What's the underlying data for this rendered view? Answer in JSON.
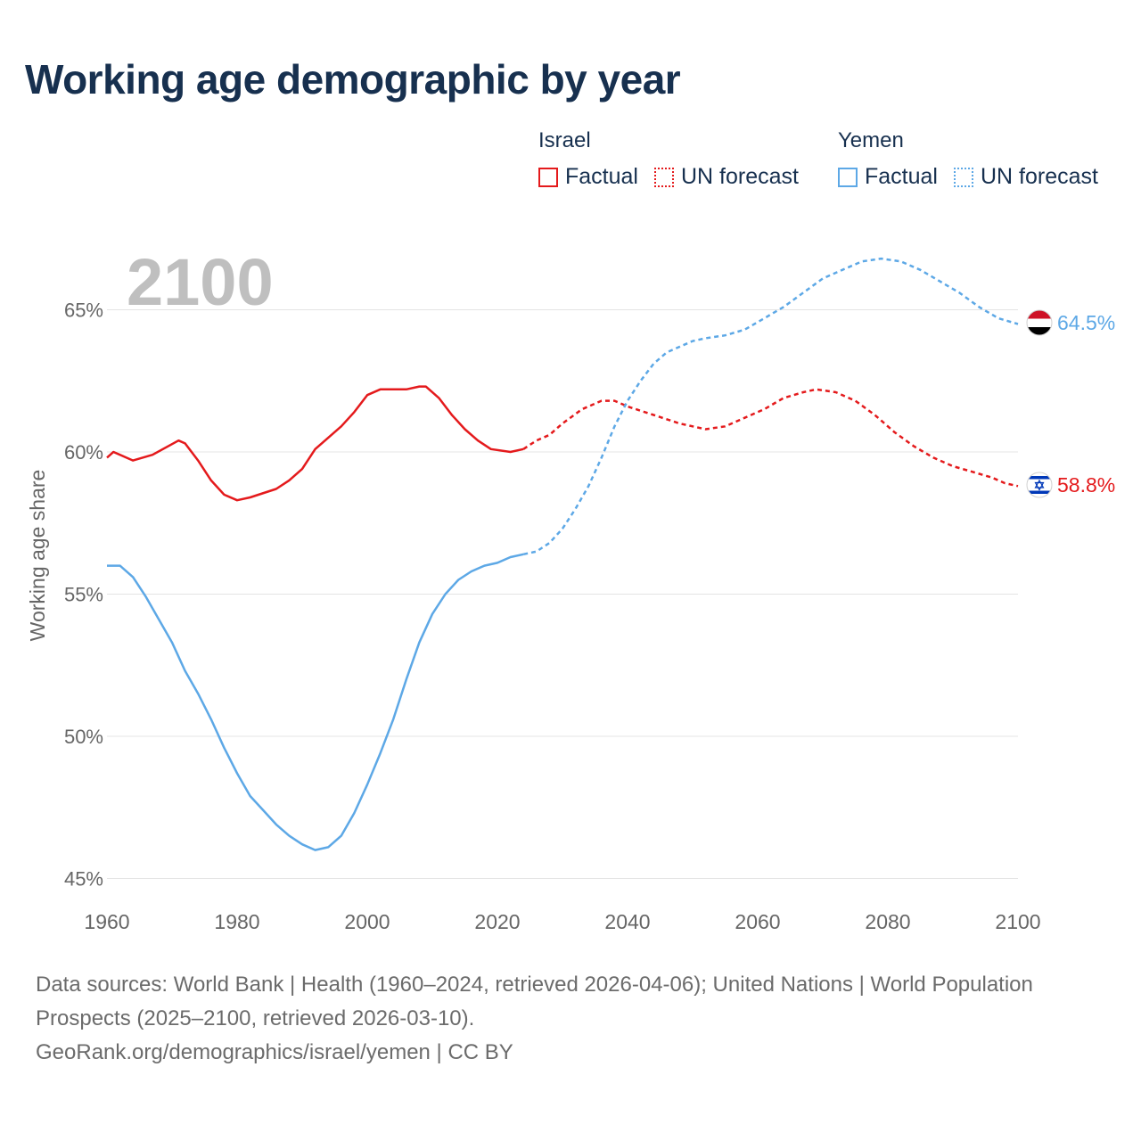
{
  "title": "Working age demographic by year",
  "legend": [
    {
      "country": "Israel",
      "factual_label": "Factual",
      "forecast_label": "UN forecast",
      "color": "#e41a1c"
    },
    {
      "country": "Yemen",
      "factual_label": "Factual",
      "forecast_label": "UN forecast",
      "color": "#5da8e6"
    }
  ],
  "colors": {
    "israel": "#e41a1c",
    "yemen": "#5da8e6",
    "axis_text": "#666666",
    "grid": "#e4e4e4",
    "watermark": "#bfbfbf"
  },
  "chart_data": {
    "type": "line",
    "title": "Working age demographic by year",
    "watermark_year": "2100",
    "xlabel": "",
    "ylabel": "Working age share",
    "xlim": [
      1960,
      2100
    ],
    "ylim": [
      45,
      70
    ],
    "x_ticks": [
      1960,
      1980,
      2000,
      2020,
      2040,
      2060,
      2080,
      2100
    ],
    "y_ticks": [
      45,
      50,
      55,
      60,
      65
    ],
    "y_tick_labels": [
      "45%",
      "50%",
      "55%",
      "60%",
      "65%"
    ],
    "forecast_start": 2024,
    "series": [
      {
        "name": "Israel",
        "end_label": "58.8%",
        "end_icon": "israel-flag-icon",
        "points": [
          [
            1960,
            59.8
          ],
          [
            1961,
            60.0
          ],
          [
            1964,
            59.7
          ],
          [
            1967,
            59.9
          ],
          [
            1971,
            60.4
          ],
          [
            1972,
            60.3
          ],
          [
            1974,
            59.7
          ],
          [
            1976,
            59.0
          ],
          [
            1978,
            58.5
          ],
          [
            1980,
            58.3
          ],
          [
            1982,
            58.4
          ],
          [
            1986,
            58.7
          ],
          [
            1988,
            59.0
          ],
          [
            1990,
            59.4
          ],
          [
            1992,
            60.1
          ],
          [
            1994,
            60.5
          ],
          [
            1996,
            60.9
          ],
          [
            1998,
            61.4
          ],
          [
            2000,
            62.0
          ],
          [
            2002,
            62.2
          ],
          [
            2004,
            62.2
          ],
          [
            2006,
            62.2
          ],
          [
            2008,
            62.3
          ],
          [
            2009,
            62.3
          ],
          [
            2011,
            61.9
          ],
          [
            2013,
            61.3
          ],
          [
            2015,
            60.8
          ],
          [
            2017,
            60.4
          ],
          [
            2019,
            60.1
          ],
          [
            2022,
            60.0
          ],
          [
            2024,
            60.1
          ],
          [
            2026,
            60.4
          ],
          [
            2028,
            60.6
          ],
          [
            2030,
            61.0
          ],
          [
            2033,
            61.5
          ],
          [
            2036,
            61.8
          ],
          [
            2038,
            61.8
          ],
          [
            2040,
            61.6
          ],
          [
            2044,
            61.3
          ],
          [
            2048,
            61.0
          ],
          [
            2052,
            60.8
          ],
          [
            2055,
            60.9
          ],
          [
            2058,
            61.2
          ],
          [
            2061,
            61.5
          ],
          [
            2064,
            61.9
          ],
          [
            2067,
            62.1
          ],
          [
            2069,
            62.2
          ],
          [
            2072,
            62.1
          ],
          [
            2075,
            61.8
          ],
          [
            2078,
            61.3
          ],
          [
            2081,
            60.7
          ],
          [
            2084,
            60.2
          ],
          [
            2087,
            59.8
          ],
          [
            2090,
            59.5
          ],
          [
            2093,
            59.3
          ],
          [
            2096,
            59.1
          ],
          [
            2098,
            58.9
          ],
          [
            2100,
            58.8
          ]
        ]
      },
      {
        "name": "Yemen",
        "end_label": "64.5%",
        "end_icon": "yemen-flag-icon",
        "points": [
          [
            1960,
            56.0
          ],
          [
            1962,
            56.0
          ],
          [
            1964,
            55.6
          ],
          [
            1966,
            54.9
          ],
          [
            1968,
            54.1
          ],
          [
            1970,
            53.3
          ],
          [
            1972,
            52.3
          ],
          [
            1974,
            51.5
          ],
          [
            1976,
            50.6
          ],
          [
            1978,
            49.6
          ],
          [
            1980,
            48.7
          ],
          [
            1982,
            47.9
          ],
          [
            1984,
            47.4
          ],
          [
            1986,
            46.9
          ],
          [
            1988,
            46.5
          ],
          [
            1990,
            46.2
          ],
          [
            1992,
            46.0
          ],
          [
            1994,
            46.1
          ],
          [
            1996,
            46.5
          ],
          [
            1998,
            47.3
          ],
          [
            2000,
            48.3
          ],
          [
            2002,
            49.4
          ],
          [
            2004,
            50.6
          ],
          [
            2006,
            52.0
          ],
          [
            2008,
            53.3
          ],
          [
            2010,
            54.3
          ],
          [
            2012,
            55.0
          ],
          [
            2014,
            55.5
          ],
          [
            2016,
            55.8
          ],
          [
            2018,
            56.0
          ],
          [
            2020,
            56.1
          ],
          [
            2022,
            56.3
          ],
          [
            2024,
            56.4
          ],
          [
            2026,
            56.5
          ],
          [
            2028,
            56.8
          ],
          [
            2030,
            57.3
          ],
          [
            2032,
            58.0
          ],
          [
            2034,
            58.8
          ],
          [
            2036,
            59.8
          ],
          [
            2038,
            60.9
          ],
          [
            2040,
            61.8
          ],
          [
            2042,
            62.5
          ],
          [
            2044,
            63.1
          ],
          [
            2046,
            63.5
          ],
          [
            2048,
            63.7
          ],
          [
            2050,
            63.9
          ],
          [
            2052,
            64.0
          ],
          [
            2055,
            64.1
          ],
          [
            2058,
            64.3
          ],
          [
            2061,
            64.7
          ],
          [
            2064,
            65.1
          ],
          [
            2067,
            65.6
          ],
          [
            2070,
            66.1
          ],
          [
            2073,
            66.4
          ],
          [
            2076,
            66.7
          ],
          [
            2079,
            66.8
          ],
          [
            2082,
            66.7
          ],
          [
            2085,
            66.4
          ],
          [
            2088,
            66.0
          ],
          [
            2091,
            65.6
          ],
          [
            2094,
            65.1
          ],
          [
            2097,
            64.7
          ],
          [
            2100,
            64.5
          ]
        ]
      }
    ]
  },
  "source": {
    "line1": "Data sources: World Bank | Health (1960–2024, retrieved 2026-04-06); United Nations | World Population Prospects (2025–2100, retrieved 2026-03-10).",
    "line2": "GeoRank.org/demographics/israel/yemen | CC BY"
  }
}
